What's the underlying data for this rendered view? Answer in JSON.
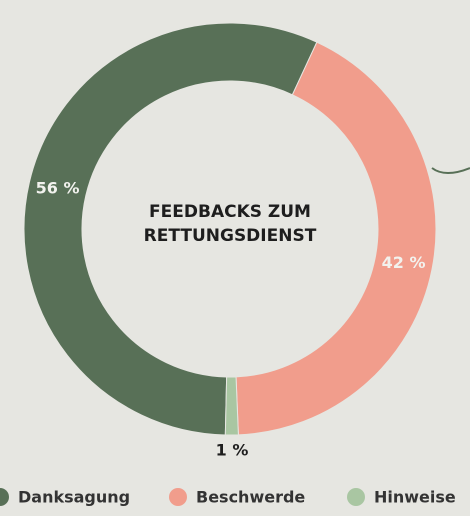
{
  "chart_data": {
    "type": "donut",
    "title": "FEEDBACKS ZUM RETTUNGSDIENST",
    "categories": [
      "Danksagung",
      "Beschwerde",
      "Hinweise"
    ],
    "values": [
      56,
      42,
      1
    ],
    "value_labels": [
      "56 %",
      "42 %",
      "1 %"
    ],
    "colors": [
      "#587057",
      "#f19d8c",
      "#a9c6a2"
    ]
  }
}
